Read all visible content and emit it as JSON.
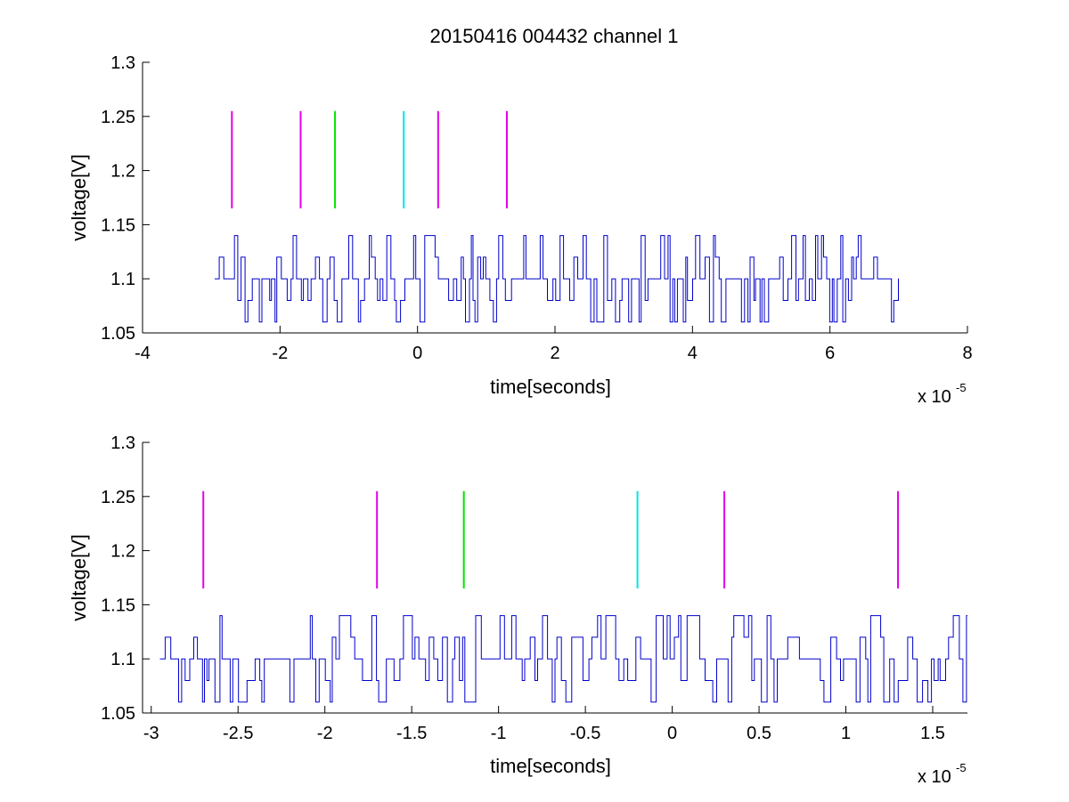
{
  "chart_data": [
    {
      "type": "line",
      "title": "20150416 004432 channel 1",
      "xlabel": "time[seconds]",
      "ylabel": "voltage[V]",
      "x_exponent": "x 10",
      "x_exponent_sup": "-5",
      "xlim": [
        -4,
        8
      ],
      "ylim": [
        1.05,
        1.3
      ],
      "xticks": [
        -4,
        -2,
        0,
        2,
        4,
        6,
        8
      ],
      "xtick_labels": [
        "-4",
        "-2",
        "0",
        "2",
        "4",
        "6",
        "8"
      ],
      "yticks": [
        1.05,
        1.1,
        1.15,
        1.2,
        1.25,
        1.3
      ],
      "ytick_labels": [
        "1.05",
        "1.1",
        "1.15",
        "1.2",
        "1.25",
        "1.3"
      ],
      "signal": {
        "color": "#0000cc",
        "x_start": -2.95,
        "x_end": 7.0,
        "levels": [
          1.06,
          1.08,
          1.1,
          1.12,
          1.14
        ],
        "baseline": 1.1
      },
      "markers": [
        {
          "x": -2.7,
          "y_low": 1.165,
          "y_high": 1.255,
          "color": "#e600e6"
        },
        {
          "x": -1.7,
          "y_low": 1.165,
          "y_high": 1.255,
          "color": "#e600e6"
        },
        {
          "x": -1.2,
          "y_low": 1.165,
          "y_high": 1.255,
          "color": "#00e600"
        },
        {
          "x": -0.2,
          "y_low": 1.165,
          "y_high": 1.255,
          "color": "#00e6e6"
        },
        {
          "x": 0.3,
          "y_low": 1.165,
          "y_high": 1.255,
          "color": "#e600e6"
        },
        {
          "x": 1.3,
          "y_low": 1.165,
          "y_high": 1.255,
          "color": "#e600e6"
        }
      ]
    },
    {
      "type": "line",
      "title": "",
      "xlabel": "time[seconds]",
      "ylabel": "voltage[V]",
      "x_exponent": "x 10",
      "x_exponent_sup": "-5",
      "xlim": [
        -3.05,
        1.7
      ],
      "ylim": [
        1.05,
        1.3
      ],
      "xticks": [
        -3,
        -2.5,
        -2,
        -1.5,
        -1,
        -0.5,
        0,
        0.5,
        1,
        1.5
      ],
      "xtick_labels": [
        "-3",
        "-2.5",
        "-2",
        "-1.5",
        "-1",
        "-0.5",
        "0",
        "0.5",
        "1",
        "1.5"
      ],
      "yticks": [
        1.05,
        1.1,
        1.15,
        1.2,
        1.25,
        1.3
      ],
      "ytick_labels": [
        "1.05",
        "1.1",
        "1.15",
        "1.2",
        "1.25",
        "1.3"
      ],
      "signal": {
        "color": "#0000cc",
        "x_start": -2.95,
        "x_end": 1.7,
        "levels": [
          1.06,
          1.08,
          1.1,
          1.12,
          1.14
        ],
        "baseline": 1.1
      },
      "markers": [
        {
          "x": -2.7,
          "y_low": 1.165,
          "y_high": 1.255,
          "color": "#e600e6"
        },
        {
          "x": -1.7,
          "y_low": 1.165,
          "y_high": 1.255,
          "color": "#e600e6"
        },
        {
          "x": -1.2,
          "y_low": 1.165,
          "y_high": 1.255,
          "color": "#00e600"
        },
        {
          "x": -0.2,
          "y_low": 1.165,
          "y_high": 1.255,
          "color": "#00e6e6"
        },
        {
          "x": 0.3,
          "y_low": 1.165,
          "y_high": 1.255,
          "color": "#e600e6"
        },
        {
          "x": 1.3,
          "y_low": 1.165,
          "y_high": 1.255,
          "color": "#e600e6"
        }
      ]
    }
  ]
}
